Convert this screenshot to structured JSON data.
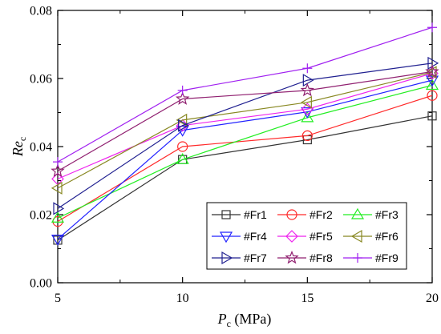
{
  "chart_data": {
    "type": "line",
    "x": [
      5,
      10,
      15,
      20
    ],
    "xticks": [
      "5",
      "10",
      "15",
      "20"
    ],
    "yticks": [
      "0.00",
      "0.02",
      "0.04",
      "0.06",
      "0.08"
    ],
    "xlim": [
      5,
      20
    ],
    "ylim": [
      0,
      0.08
    ],
    "grid": false,
    "legend_placement": "bottom-right",
    "xlabel": {
      "main": "P",
      "sub": "c",
      "rest": " (MPa)"
    },
    "ylabel": {
      "main": "Re",
      "sub": "c"
    },
    "series": [
      {
        "name": "#Fr1",
        "marker": "square",
        "color": "#333333",
        "values": [
          0.0125,
          0.0362,
          0.042,
          0.049
        ]
      },
      {
        "name": "#Fr2",
        "marker": "circle",
        "color": "#ff2a2a",
        "values": [
          0.018,
          0.04,
          0.0432,
          0.055
        ]
      },
      {
        "name": "#Fr3",
        "marker": "triangle-up",
        "color": "#22ee22",
        "values": [
          0.019,
          0.0362,
          0.0485,
          0.058
        ]
      },
      {
        "name": "#Fr4",
        "marker": "triangle-down",
        "color": "#2222ff",
        "values": [
          0.0128,
          0.0448,
          0.0502,
          0.0595
        ]
      },
      {
        "name": "#Fr5",
        "marker": "diamond",
        "color": "#ee22ee",
        "values": [
          0.0305,
          0.0462,
          0.051,
          0.0615
        ]
      },
      {
        "name": "#Fr6",
        "marker": "triangle-left",
        "color": "#888822",
        "values": [
          0.0278,
          0.0478,
          0.053,
          0.0618
        ]
      },
      {
        "name": "#Fr7",
        "marker": "triangle-right",
        "color": "#202090",
        "values": [
          0.0218,
          0.0462,
          0.0595,
          0.0645
        ]
      },
      {
        "name": "#Fr8",
        "marker": "star",
        "color": "#902070",
        "values": [
          0.0328,
          0.054,
          0.0565,
          0.062
        ]
      },
      {
        "name": "#Fr9",
        "marker": "plus",
        "color": "#a020f0",
        "values": [
          0.0355,
          0.0565,
          0.063,
          0.075
        ]
      }
    ]
  }
}
